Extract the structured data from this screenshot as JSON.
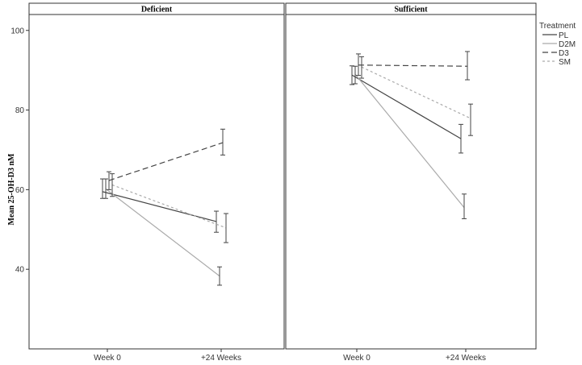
{
  "chart_data": {
    "type": "line",
    "ylabel": "Mean 25-OH-D3 nM",
    "ylim": [
      20,
      104
    ],
    "yticks": [
      40,
      60,
      80,
      100
    ],
    "categories": [
      "Week 0",
      "+24 Weeks"
    ],
    "legend": {
      "title": "Treatment",
      "placement": "right",
      "entries": [
        "PL",
        "D2M",
        "D3",
        "SM"
      ]
    },
    "series_style": {
      "PL": {
        "color": "#444444",
        "dash": ""
      },
      "D2M": {
        "color": "#aaaaaa",
        "dash": ""
      },
      "D3": {
        "color": "#444444",
        "dash": "7,4"
      },
      "SM": {
        "color": "#aaaaaa",
        "dash": "3,3"
      }
    },
    "panels": [
      {
        "title": "Deficient",
        "series": [
          {
            "name": "PL",
            "values": [
              59.5,
              52.0
            ],
            "err_low": [
              57.8,
              49.3
            ],
            "err_high": [
              62.7,
              54.6
            ]
          },
          {
            "name": "D2M",
            "values": [
              60.2,
              38.3
            ],
            "err_low": [
              57.8,
              36.0
            ],
            "err_high": [
              62.7,
              40.6
            ]
          },
          {
            "name": "D3",
            "values": [
              62.3,
              71.8
            ],
            "err_low": [
              60.0,
              68.7
            ],
            "err_high": [
              64.5,
              75.2
            ]
          },
          {
            "name": "SM",
            "values": [
              61.2,
              50.4
            ],
            "err_low": [
              58.3,
              46.7
            ],
            "err_high": [
              64.0,
              54.0
            ]
          }
        ]
      },
      {
        "title": "Sufficient",
        "series": [
          {
            "name": "PL",
            "values": [
              88.8,
              72.8
            ],
            "err_low": [
              86.4,
              69.2
            ],
            "err_high": [
              91.1,
              76.4
            ]
          },
          {
            "name": "D2M",
            "values": [
              89.0,
              55.5
            ],
            "err_low": [
              86.6,
              52.7
            ],
            "err_high": [
              91.0,
              58.9
            ]
          },
          {
            "name": "D3",
            "values": [
              91.3,
              91.0
            ],
            "err_low": [
              88.7,
              87.6
            ],
            "err_high": [
              94.1,
              94.7
            ]
          },
          {
            "name": "SM",
            "values": [
              90.8,
              77.9
            ],
            "err_low": [
              88.0,
              73.6
            ],
            "err_high": [
              93.4,
              81.5
            ]
          }
        ]
      }
    ]
  }
}
